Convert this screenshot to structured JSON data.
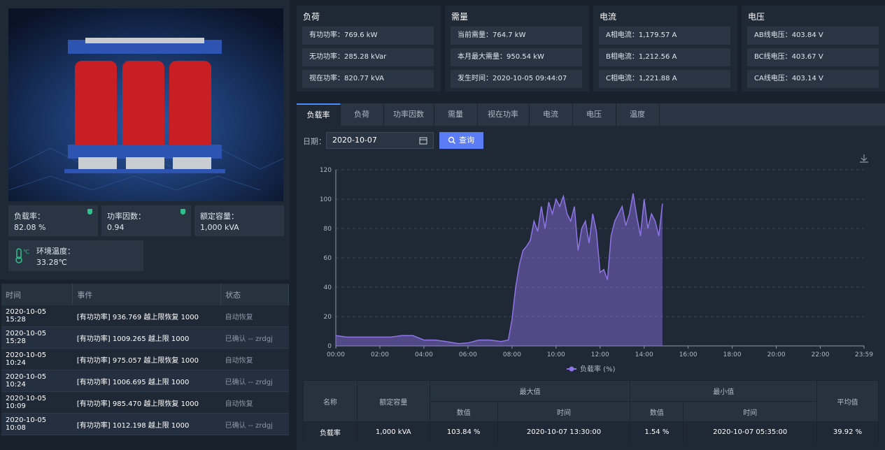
{
  "left": {
    "stats": [
      {
        "label": "负载率：",
        "value": "82.08 %"
      },
      {
        "label": "功率因数：",
        "value": "0.94"
      },
      {
        "label": "额定容量：",
        "value": "1,000 kVA"
      }
    ],
    "env": {
      "label": "环境温度：",
      "value": "33.28℃"
    },
    "events": {
      "headers": [
        "时间",
        "事件",
        "状态"
      ],
      "rows": [
        [
          "2020-10-05 15:28",
          "[有功功率] 936.769 越上限恢复 1000",
          "自动恢复"
        ],
        [
          "2020-10-05 15:28",
          "[有功功率] 1009.265 越上限 1000",
          "已确认 -- zrdgj"
        ],
        [
          "2020-10-05 10:24",
          "[有功功率] 975.057 越上限恢复 1000",
          "自动恢复"
        ],
        [
          "2020-10-05 10:24",
          "[有功功率] 1006.695 越上限 1000",
          "已确认 -- zrdgj"
        ],
        [
          "2020-10-05 10:09",
          "[有功功率] 985.470 越上限恢复 1000",
          "自动恢复"
        ],
        [
          "2020-10-05 10:08",
          "[有功功率] 1012.198 越上限 1000",
          "已确认 -- zrdgj"
        ]
      ]
    }
  },
  "metrics": [
    {
      "title": "负荷",
      "items": [
        "有功功率：769.6 kW",
        "无功功率：285.28 kVar",
        "视在功率：820.77 kVA"
      ]
    },
    {
      "title": "需量",
      "items": [
        "当前需量：764.7 kW",
        "本月最大需量：950.54 kW",
        "发生时间：2020-10-05 09:44:07"
      ]
    },
    {
      "title": "电流",
      "items": [
        "A相电流：1,179.57 A",
        "B相电流：1,212.56 A",
        "C相电流：1,221.88 A"
      ]
    },
    {
      "title": "电压",
      "items": [
        "AB线电压：403.84 V",
        "BC线电压：403.67 V",
        "CA线电压：403.14 V"
      ]
    }
  ],
  "tabs": [
    "负载率",
    "负荷",
    "功率因数",
    "需量",
    "视在功率",
    "电流",
    "电压",
    "温度"
  ],
  "query": {
    "label": "日期：",
    "date": "2020-10-07",
    "button": "查询"
  },
  "chart_data": {
    "type": "area",
    "x": [
      0,
      30,
      60,
      90,
      120,
      150,
      180,
      210,
      240,
      270,
      300,
      335,
      360,
      390,
      420,
      450,
      470,
      480,
      490,
      500,
      510,
      520,
      530,
      540,
      550,
      560,
      570,
      580,
      590,
      600,
      610,
      620,
      630,
      640,
      650,
      660,
      670,
      680,
      690,
      700,
      710,
      720,
      730,
      740,
      750,
      760,
      770,
      780,
      790,
      800,
      810,
      820,
      830,
      840,
      850,
      860,
      870,
      880,
      890
    ],
    "series": [
      {
        "name": "负载率 (%)",
        "color": "#8f74e8",
        "values": [
          7,
          6,
          6,
          6,
          6,
          6,
          7,
          7,
          4,
          4,
          3,
          1.54,
          2,
          4,
          4,
          3,
          4,
          18,
          40,
          55,
          65,
          68,
          72,
          85,
          78,
          95,
          80,
          98,
          90,
          100,
          95,
          102,
          90,
          85,
          95,
          65,
          80,
          85,
          70,
          90,
          78,
          50,
          52,
          45,
          75,
          85,
          90,
          95,
          82,
          90,
          103.84,
          88,
          75,
          100,
          80,
          90,
          85,
          75,
          97
        ]
      }
    ],
    "xlim": [
      0,
      1439
    ],
    "xticks": [
      {
        "value": 0,
        "label": "00:00"
      },
      {
        "value": 120,
        "label": "02:00"
      },
      {
        "value": 240,
        "label": "04:00"
      },
      {
        "value": 360,
        "label": "06:00"
      },
      {
        "value": 480,
        "label": "08:00"
      },
      {
        "value": 600,
        "label": "10:00"
      },
      {
        "value": 720,
        "label": "12:00"
      },
      {
        "value": 840,
        "label": "14:00"
      },
      {
        "value": 960,
        "label": "16:00"
      },
      {
        "value": 1080,
        "label": "18:00"
      },
      {
        "value": 1200,
        "label": "20:00"
      },
      {
        "value": 1320,
        "label": "22:00"
      },
      {
        "value": 1439,
        "label": "23:59"
      }
    ],
    "ylim": [
      0,
      120
    ],
    "yticks": [
      0,
      20,
      40,
      60,
      80,
      100,
      120
    ],
    "grid": true
  },
  "summary": {
    "headers": [
      "名称",
      "额定容量",
      "最大值",
      "最小值",
      "平均值"
    ],
    "subheaders": [
      "数值",
      "时间",
      "数值",
      "时间"
    ],
    "row": [
      "负载率",
      "1,000 kVA",
      "103.84 %",
      "2020-10-07 13:30:00",
      "1.54 %",
      "2020-10-07 05:35:00",
      "39.92 %"
    ]
  }
}
